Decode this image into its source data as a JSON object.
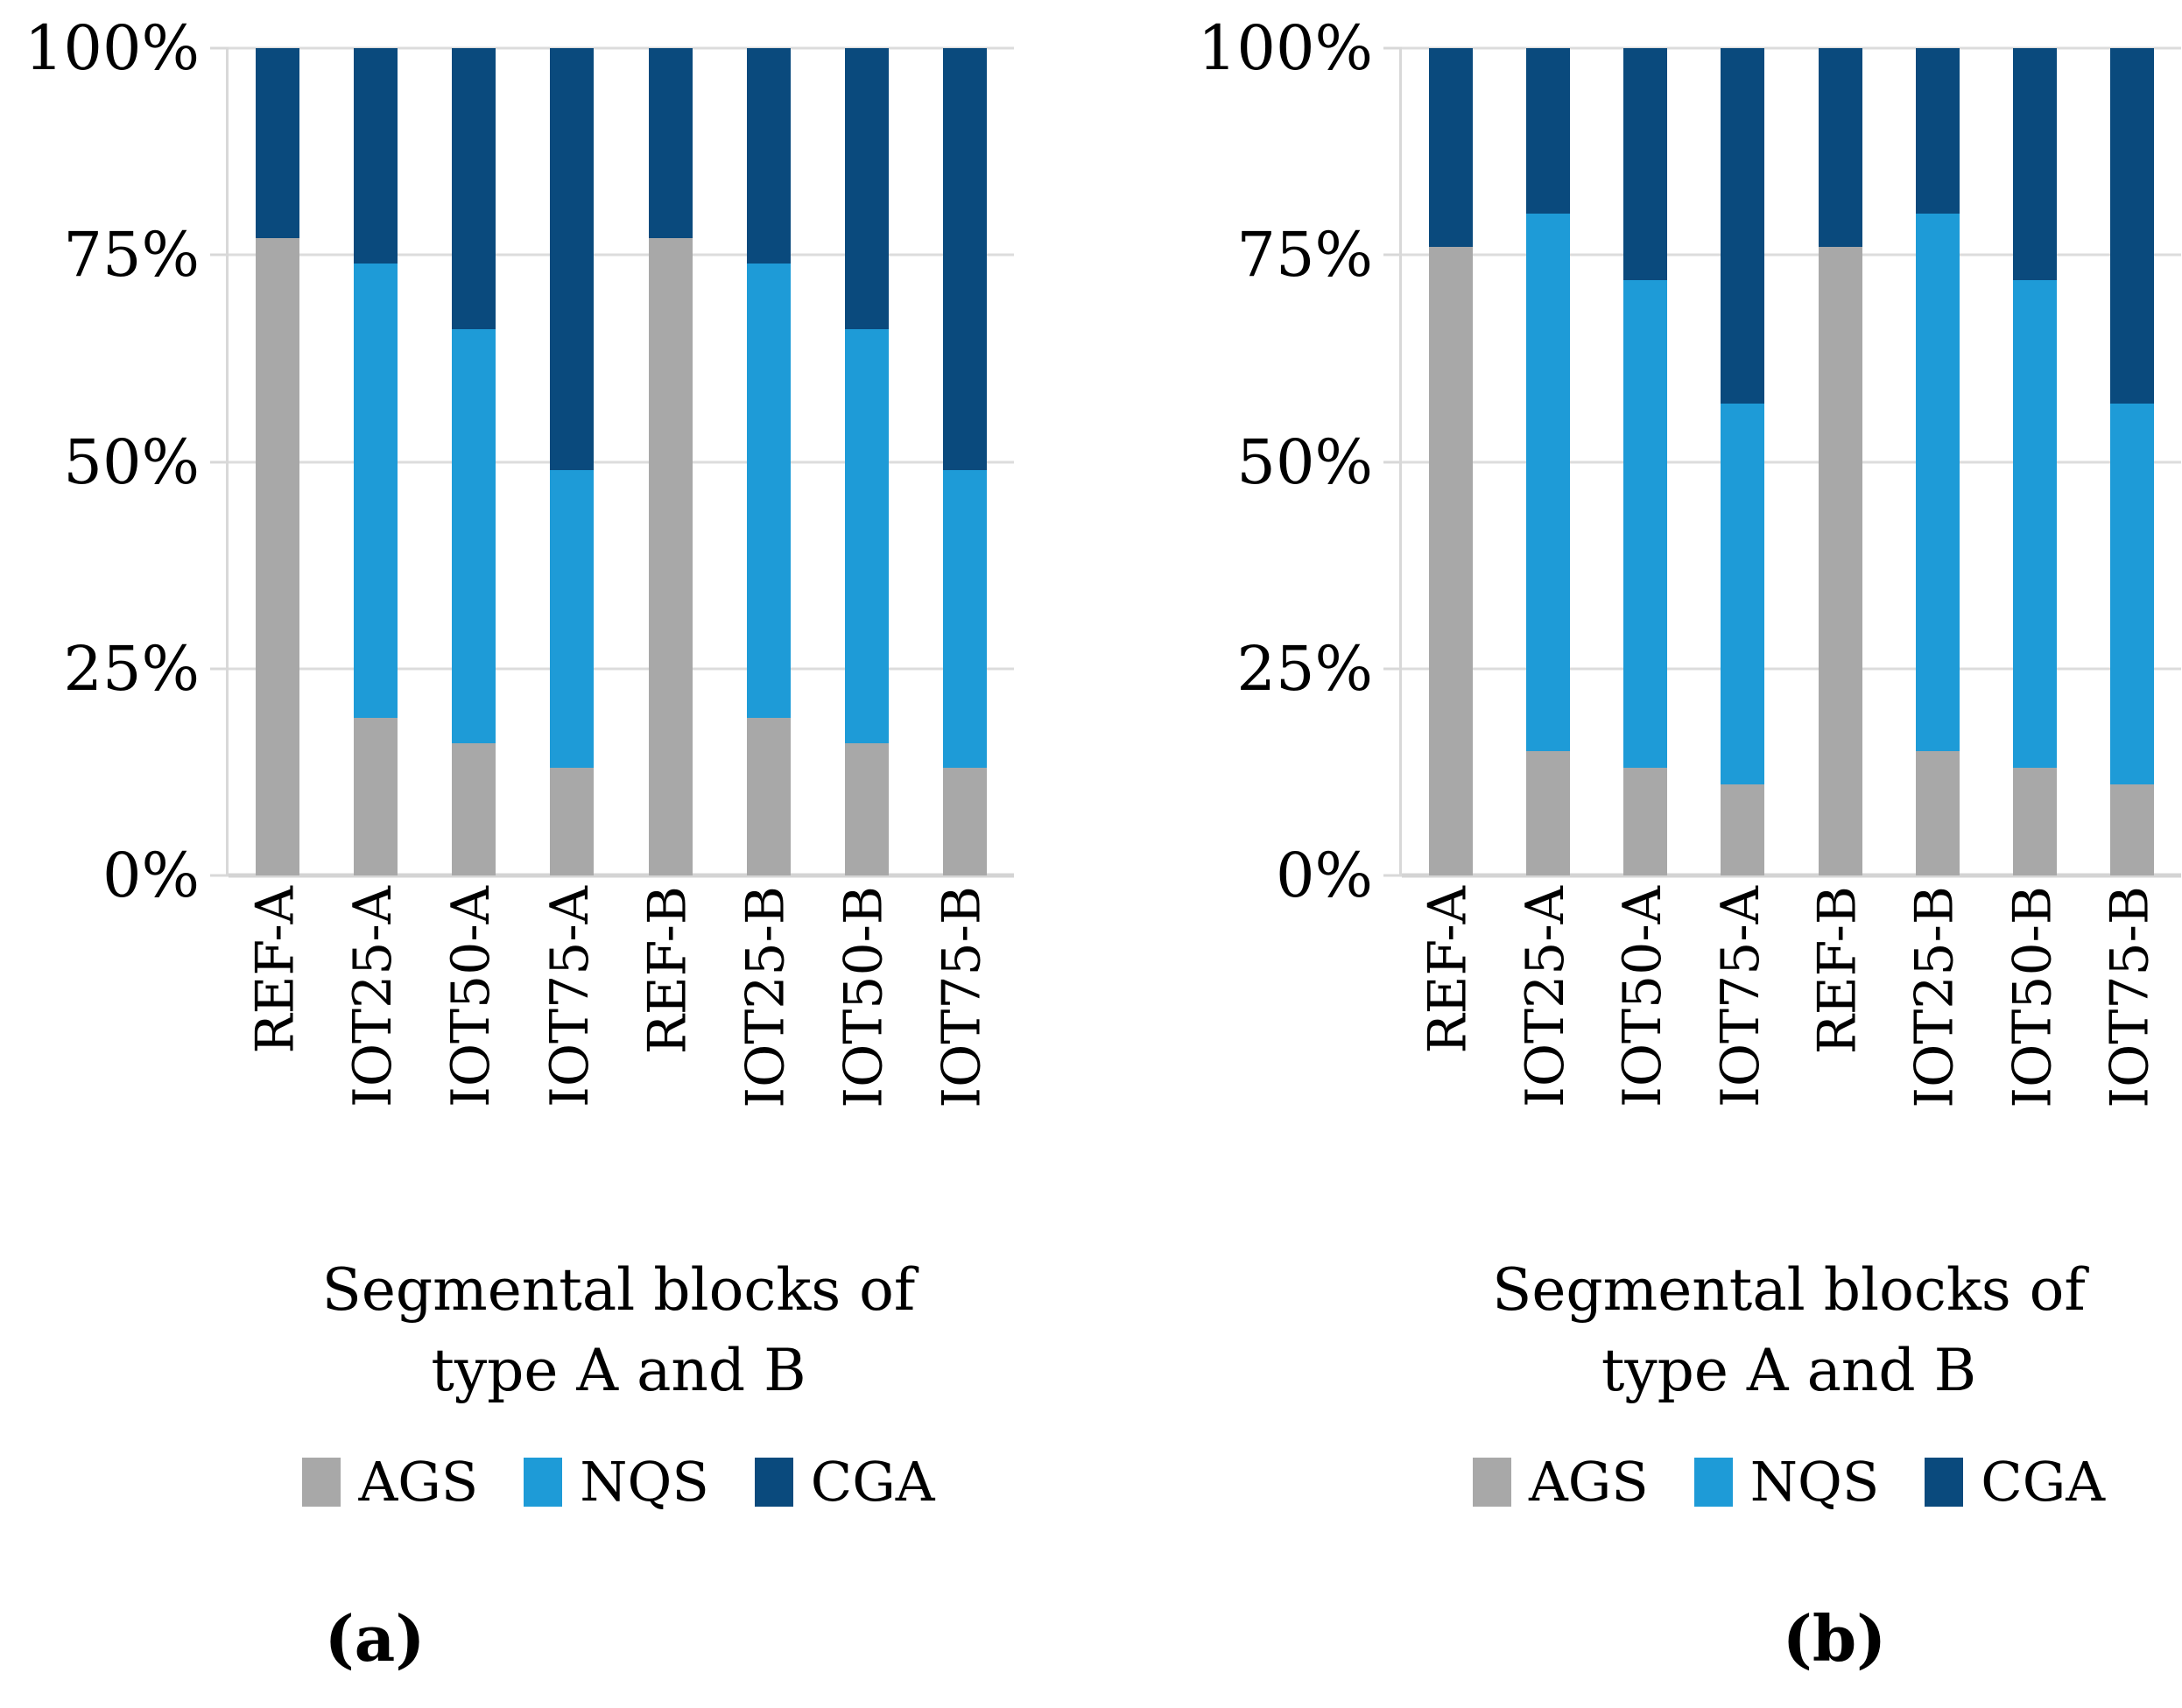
{
  "figure": {
    "y_ticks": [
      {
        "label": "100%",
        "value": 100
      },
      {
        "label": "75%",
        "value": 75
      },
      {
        "label": "50%",
        "value": 50
      },
      {
        "label": "25%",
        "value": 25
      },
      {
        "label": "0%",
        "value": 0
      }
    ],
    "x_title_lines": [
      "Segmental blocks of",
      "type A and B"
    ],
    "legend": [
      "AGS",
      "NQS",
      "CGA"
    ],
    "colors": {
      "ags": "#A8A8A8",
      "nqs": "#1E9BD7",
      "cga": "#0A4A7D",
      "gridline": "#DCDCDC",
      "axis": "#D8D8D8"
    }
  },
  "chart_data": [
    {
      "id": "a",
      "caption": "(a)",
      "type": "bar",
      "stacked": true,
      "percent": true,
      "grid": true,
      "legend_position": "bottom",
      "xlabel": "Segmental blocks of type A and B",
      "ylabel": "",
      "ylim": [
        0,
        100
      ],
      "y_tick_labels": [
        "100%",
        "75%",
        "50%",
        "25%",
        "0%"
      ],
      "categories": [
        "REF-A",
        "IOT25-A",
        "IOT50-A",
        "IOT75-A",
        "REF-B",
        "IOT25-B",
        "IOT50-B",
        "IOT75-B"
      ],
      "series": [
        {
          "name": "AGS",
          "color": "#A8A8A8",
          "values": [
            77,
            19,
            16,
            13,
            77,
            19,
            16,
            13
          ]
        },
        {
          "name": "NQS",
          "color": "#1E9BD7",
          "values": [
            0,
            55,
            50,
            36,
            0,
            55,
            50,
            36
          ]
        },
        {
          "name": "CGA",
          "color": "#0A4A7D",
          "values": [
            23,
            26,
            34,
            51,
            23,
            26,
            34,
            51
          ]
        }
      ]
    },
    {
      "id": "b",
      "caption": "(b)",
      "type": "bar",
      "stacked": true,
      "percent": true,
      "grid": true,
      "legend_position": "bottom",
      "xlabel": "Segmental blocks of type A and B",
      "ylabel": "",
      "ylim": [
        0,
        100
      ],
      "y_tick_labels": [
        "100%",
        "75%",
        "50%",
        "25%",
        "0%"
      ],
      "categories": [
        "REF-A",
        "IOT25-A",
        "IOT50-A",
        "IOT75-A",
        "REF-B",
        "IOT25-B",
        "IOT50-B",
        "IOT75-B"
      ],
      "series": [
        {
          "name": "AGS",
          "color": "#A8A8A8",
          "values": [
            76,
            15,
            13,
            11,
            76,
            15,
            13,
            11
          ]
        },
        {
          "name": "NQS",
          "color": "#1E9BD7",
          "values": [
            0,
            65,
            59,
            46,
            0,
            65,
            59,
            46
          ]
        },
        {
          "name": "CGA",
          "color": "#0A4A7D",
          "values": [
            24,
            20,
            28,
            43,
            24,
            20,
            28,
            43
          ]
        }
      ]
    }
  ]
}
